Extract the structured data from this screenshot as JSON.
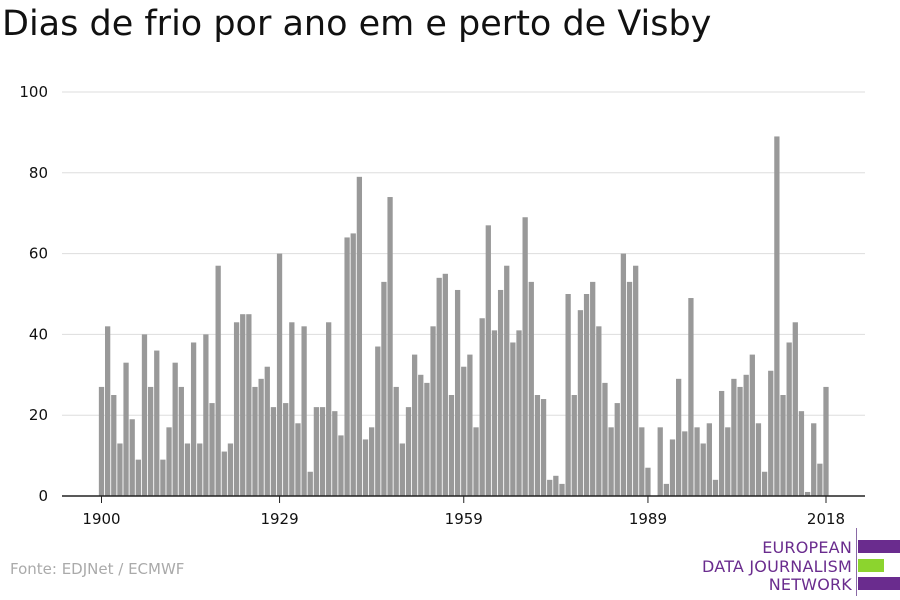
{
  "chart_data": {
    "type": "bar",
    "title": "Dias de frio por ano em e perto de Visby",
    "xlabel": "",
    "ylabel": "",
    "x_start": 1900,
    "x_end": 2018,
    "values": [
      27,
      42,
      25,
      13,
      33,
      19,
      9,
      40,
      27,
      36,
      9,
      17,
      33,
      27,
      13,
      38,
      13,
      40,
      23,
      57,
      11,
      13,
      43,
      45,
      45,
      27,
      29,
      32,
      22,
      60,
      23,
      43,
      18,
      42,
      6,
      22,
      22,
      43,
      21,
      15,
      64,
      65,
      79,
      14,
      17,
      37,
      53,
      74,
      27,
      13,
      22,
      35,
      30,
      28,
      42,
      54,
      55,
      25,
      51,
      32,
      35,
      17,
      44,
      67,
      41,
      51,
      57,
      38,
      41,
      69,
      53,
      25,
      24,
      4,
      5,
      3,
      50,
      25,
      46,
      50,
      53,
      42,
      28,
      17,
      23,
      60,
      53,
      57,
      17,
      7,
      0,
      17,
      3,
      14,
      29,
      16,
      49,
      17,
      13,
      18,
      4,
      26,
      17,
      29,
      27,
      30,
      35,
      18,
      6,
      31,
      89,
      25,
      38,
      43,
      21,
      1,
      18,
      8,
      27
    ],
    "x_ticks": [
      "1900",
      "1929",
      "1959",
      "1989",
      "2018"
    ],
    "y_ticks": [
      "0",
      "20",
      "40",
      "60",
      "80",
      "100"
    ],
    "ylim": [
      0,
      100
    ],
    "bar_color": "#999999",
    "grid": true
  },
  "source": "Fonte: EDJNet / ECMWF",
  "logo": {
    "lines": [
      "EUROPEAN",
      "DATA JOURNALISM",
      "NETWORK"
    ],
    "text_color": "#6a2c8e",
    "bar_colors": [
      "#6a2c8e",
      "#8cd42e",
      "#6a2c8e"
    ]
  }
}
